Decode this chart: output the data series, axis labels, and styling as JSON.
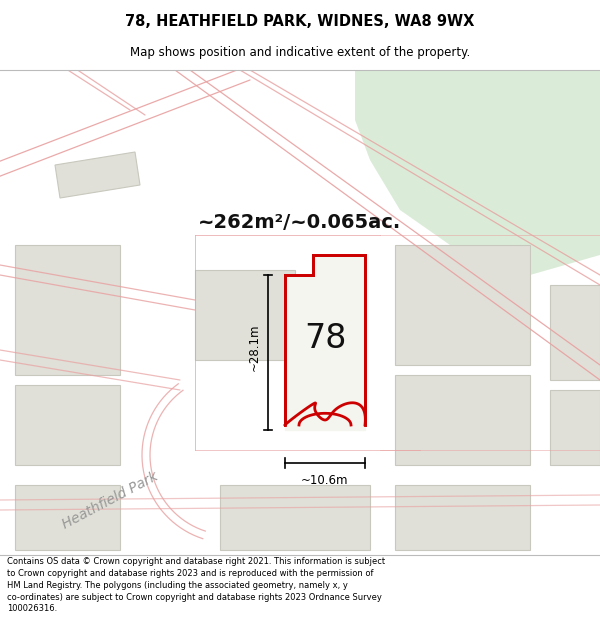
{
  "title_line1": "78, HEATHFIELD PARK, WIDNES, WA8 9WX",
  "title_line2": "Map shows position and indicative extent of the property.",
  "area_text": "~262m²/~0.065ac.",
  "label_78": "78",
  "dim_vertical": "~28.1m",
  "dim_horizontal": "~10.6m",
  "street_label": "Heathfield Park",
  "footer_text": "Contains OS data © Crown copyright and database right 2021. This information is subject to Crown copyright and database rights 2023 and is reproduced with the permission of HM Land Registry. The polygons (including the associated geometry, namely x, y co-ordinates) are subject to Crown copyright and database rights 2023 Ordnance Survey 100026316.",
  "bg_color": "#f5f5f0",
  "map_bg": "#f5f5f0",
  "road_line_color": "#e8a0a0",
  "road_fill_color": "#f8e8e8",
  "plot_fill": "#f5f5f0",
  "plot_stroke": "#cc0000",
  "block_fill": "#e0e0d8",
  "block_stroke": "#c8c8be",
  "green_fill": "#daecd8",
  "footer_bg": "#ffffff",
  "title_bg": "#ffffff"
}
